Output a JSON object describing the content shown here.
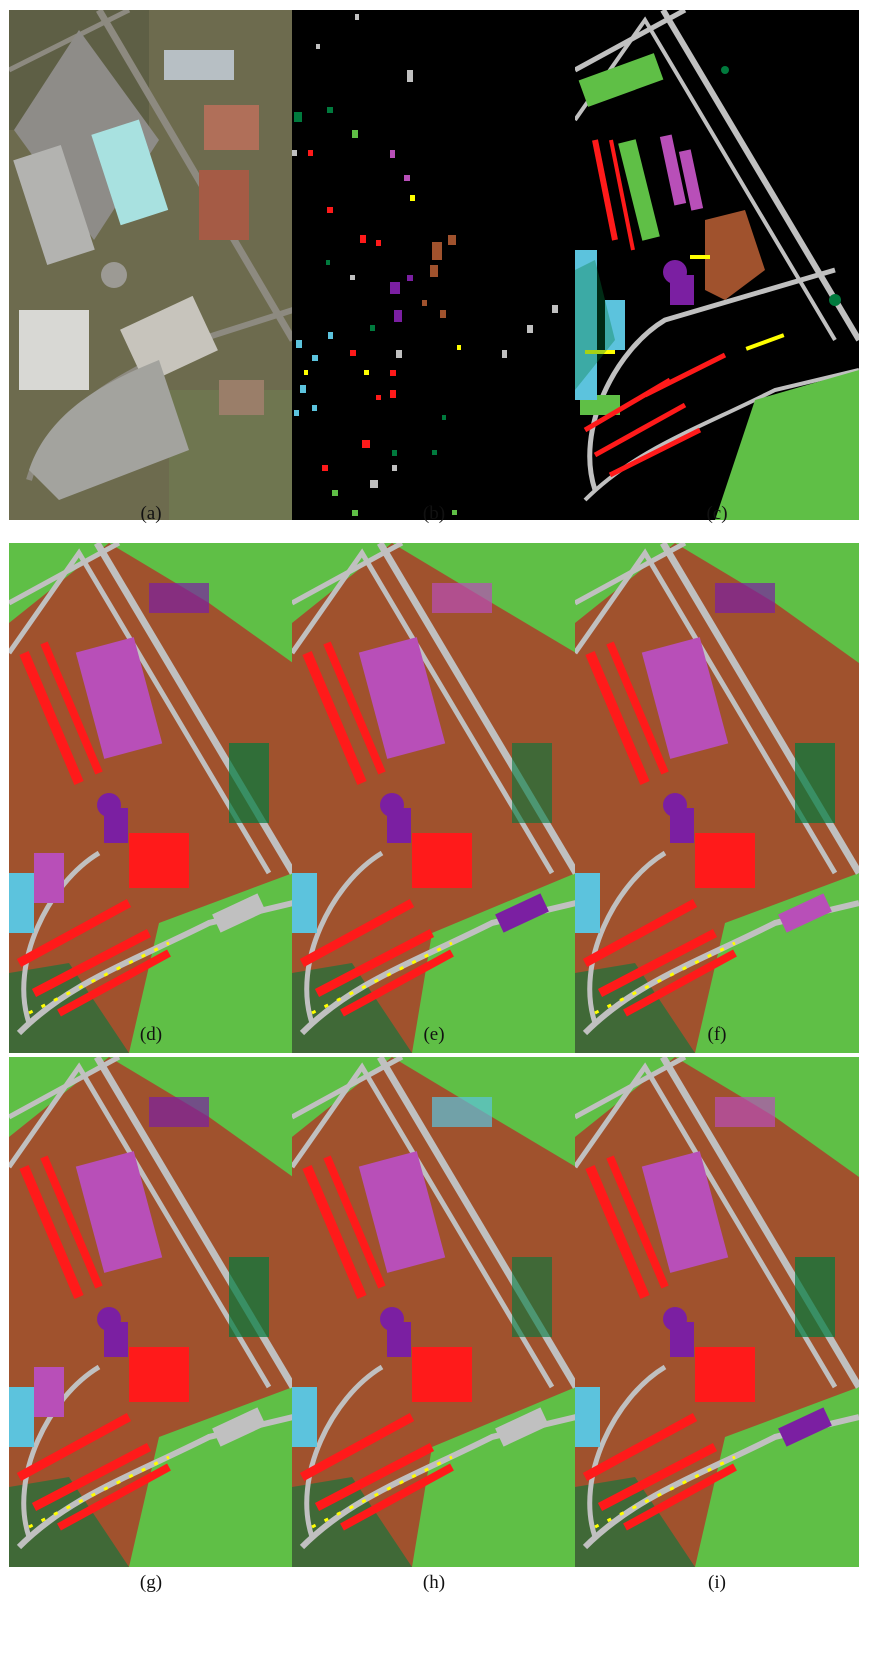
{
  "figure": {
    "panels": [
      {
        "caption": "(a)",
        "kind": "rgb-aerial-image"
      },
      {
        "caption": "(b)",
        "kind": "training-samples-map"
      },
      {
        "caption": "(c)",
        "kind": "ground-truth-map"
      },
      {
        "caption": "(d)",
        "kind": "classification-map"
      },
      {
        "caption": "(e)",
        "kind": "classification-map"
      },
      {
        "caption": "(f)",
        "kind": "classification-map"
      },
      {
        "caption": "(g)",
        "kind": "classification-map"
      },
      {
        "caption": "(h)",
        "kind": "classification-map"
      },
      {
        "caption": "(i)",
        "kind": "classification-map"
      }
    ],
    "class_colors": {
      "asphalt": "#c0c0c0",
      "meadows": "#5fbf46",
      "gravel": "#5cc3dd",
      "trees": "#007a3d",
      "metal_sheets": "#b84fb8",
      "bare_soil": "#a0522d",
      "bitumen": "#7b1fa2",
      "bricks": "#ff1a1a",
      "shadows": "#ffff00",
      "background": "#000000"
    }
  }
}
